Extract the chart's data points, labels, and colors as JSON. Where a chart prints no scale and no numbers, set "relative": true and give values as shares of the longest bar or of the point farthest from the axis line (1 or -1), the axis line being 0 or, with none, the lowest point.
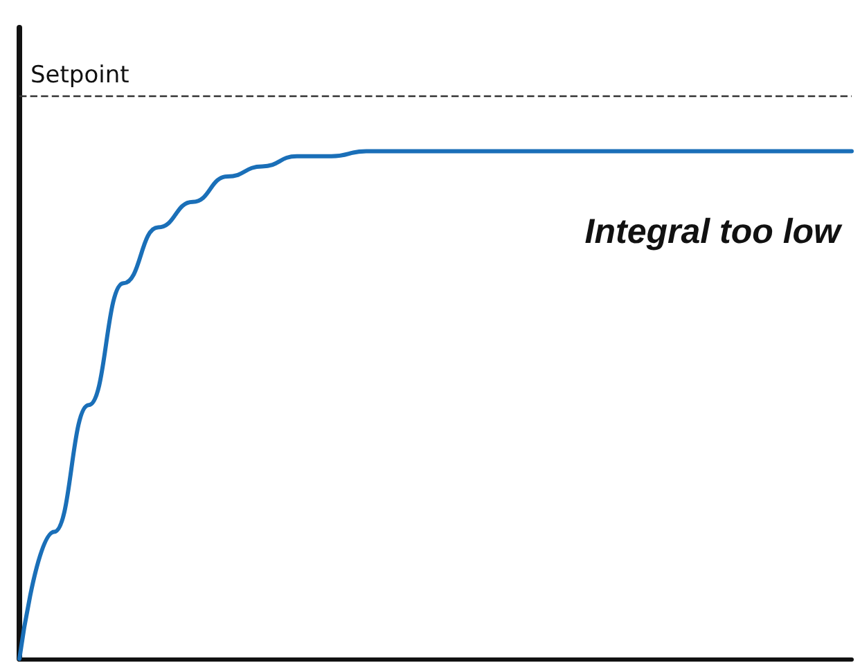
{
  "chart_data": {
    "type": "line",
    "relative": true,
    "categories": [
      null,
      null,
      null,
      null,
      null,
      null,
      null,
      null,
      null,
      null,
      null,
      null,
      null,
      null,
      null,
      null,
      null,
      null,
      null,
      null,
      null,
      null,
      null,
      null,
      null
    ],
    "series": [
      {
        "color": "#1a6fb8",
        "values": [
          0,
          0.25,
          0.5,
          0.74,
          0.85,
          0.9,
          0.95,
          0.97,
          0.99,
          0.99,
          1,
          1,
          1,
          1,
          1,
          1,
          1,
          1,
          1,
          1,
          1,
          1,
          1,
          1,
          1
        ]
      }
    ],
    "ref_lines": [
      {
        "axis": "y",
        "value": 1.11,
        "label": "Setpoint",
        "color": "#333333",
        "line_style": "dashed"
      }
    ],
    "annotations": [
      "Integral too low"
    ],
    "grid": false,
    "marker": "none",
    "line_style": "solid"
  }
}
